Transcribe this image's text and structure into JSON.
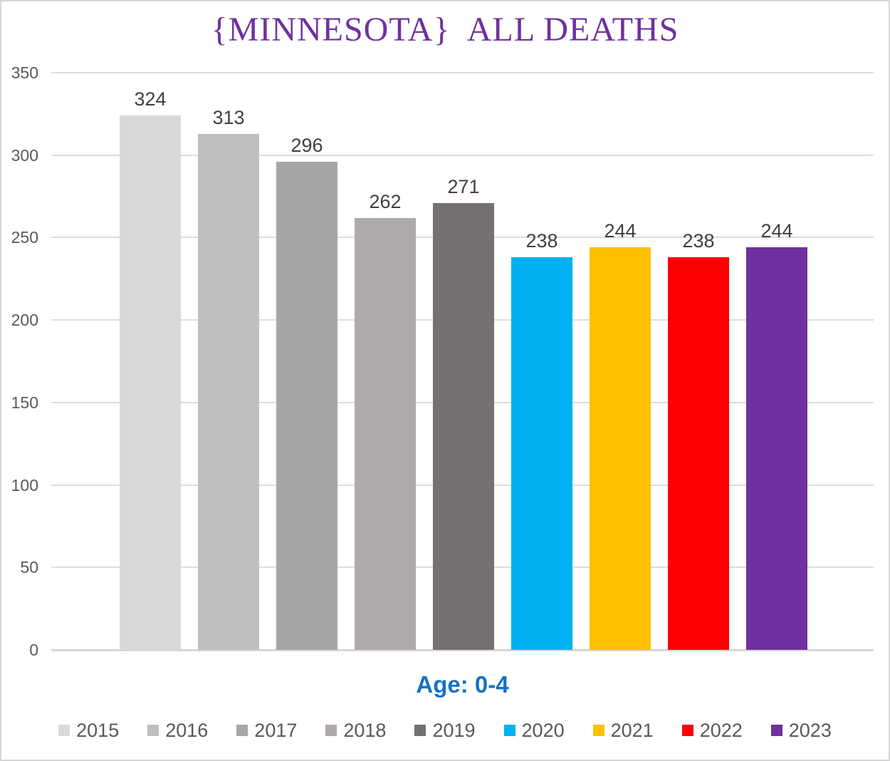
{
  "chart": {
    "title": "{MINNESOTA}  ALL DEATHS",
    "subtitle": "Age: 0-4"
  },
  "chart_data": {
    "type": "bar",
    "title": "{MINNESOTA}  ALL DEATHS",
    "subtitle": "Age: 0-4",
    "categories": [
      "2015",
      "2016",
      "2017",
      "2018",
      "2019",
      "2020",
      "2021",
      "2022",
      "2023"
    ],
    "values": [
      324,
      313,
      296,
      262,
      271,
      238,
      244,
      238,
      244
    ],
    "bar_colors": [
      "#d9d9d9",
      "#bfbfbf",
      "#a6a6a6",
      "#aeaaaa",
      "#757171",
      "#00b0f0",
      "#ffc000",
      "#ff0000",
      "#7030a0"
    ],
    "xlabel": "Age: 0-4",
    "ylabel": "",
    "ylim": [
      0,
      350
    ],
    "yticks": [
      0,
      50,
      100,
      150,
      200,
      250,
      300,
      350
    ],
    "grid": true,
    "legend_position": "bottom",
    "colors": {
      "title": "#7030a0",
      "subtitle": "#1572c6",
      "value_label": "#404040",
      "axis_text": "#595959",
      "gridline": "#dddddd"
    }
  }
}
